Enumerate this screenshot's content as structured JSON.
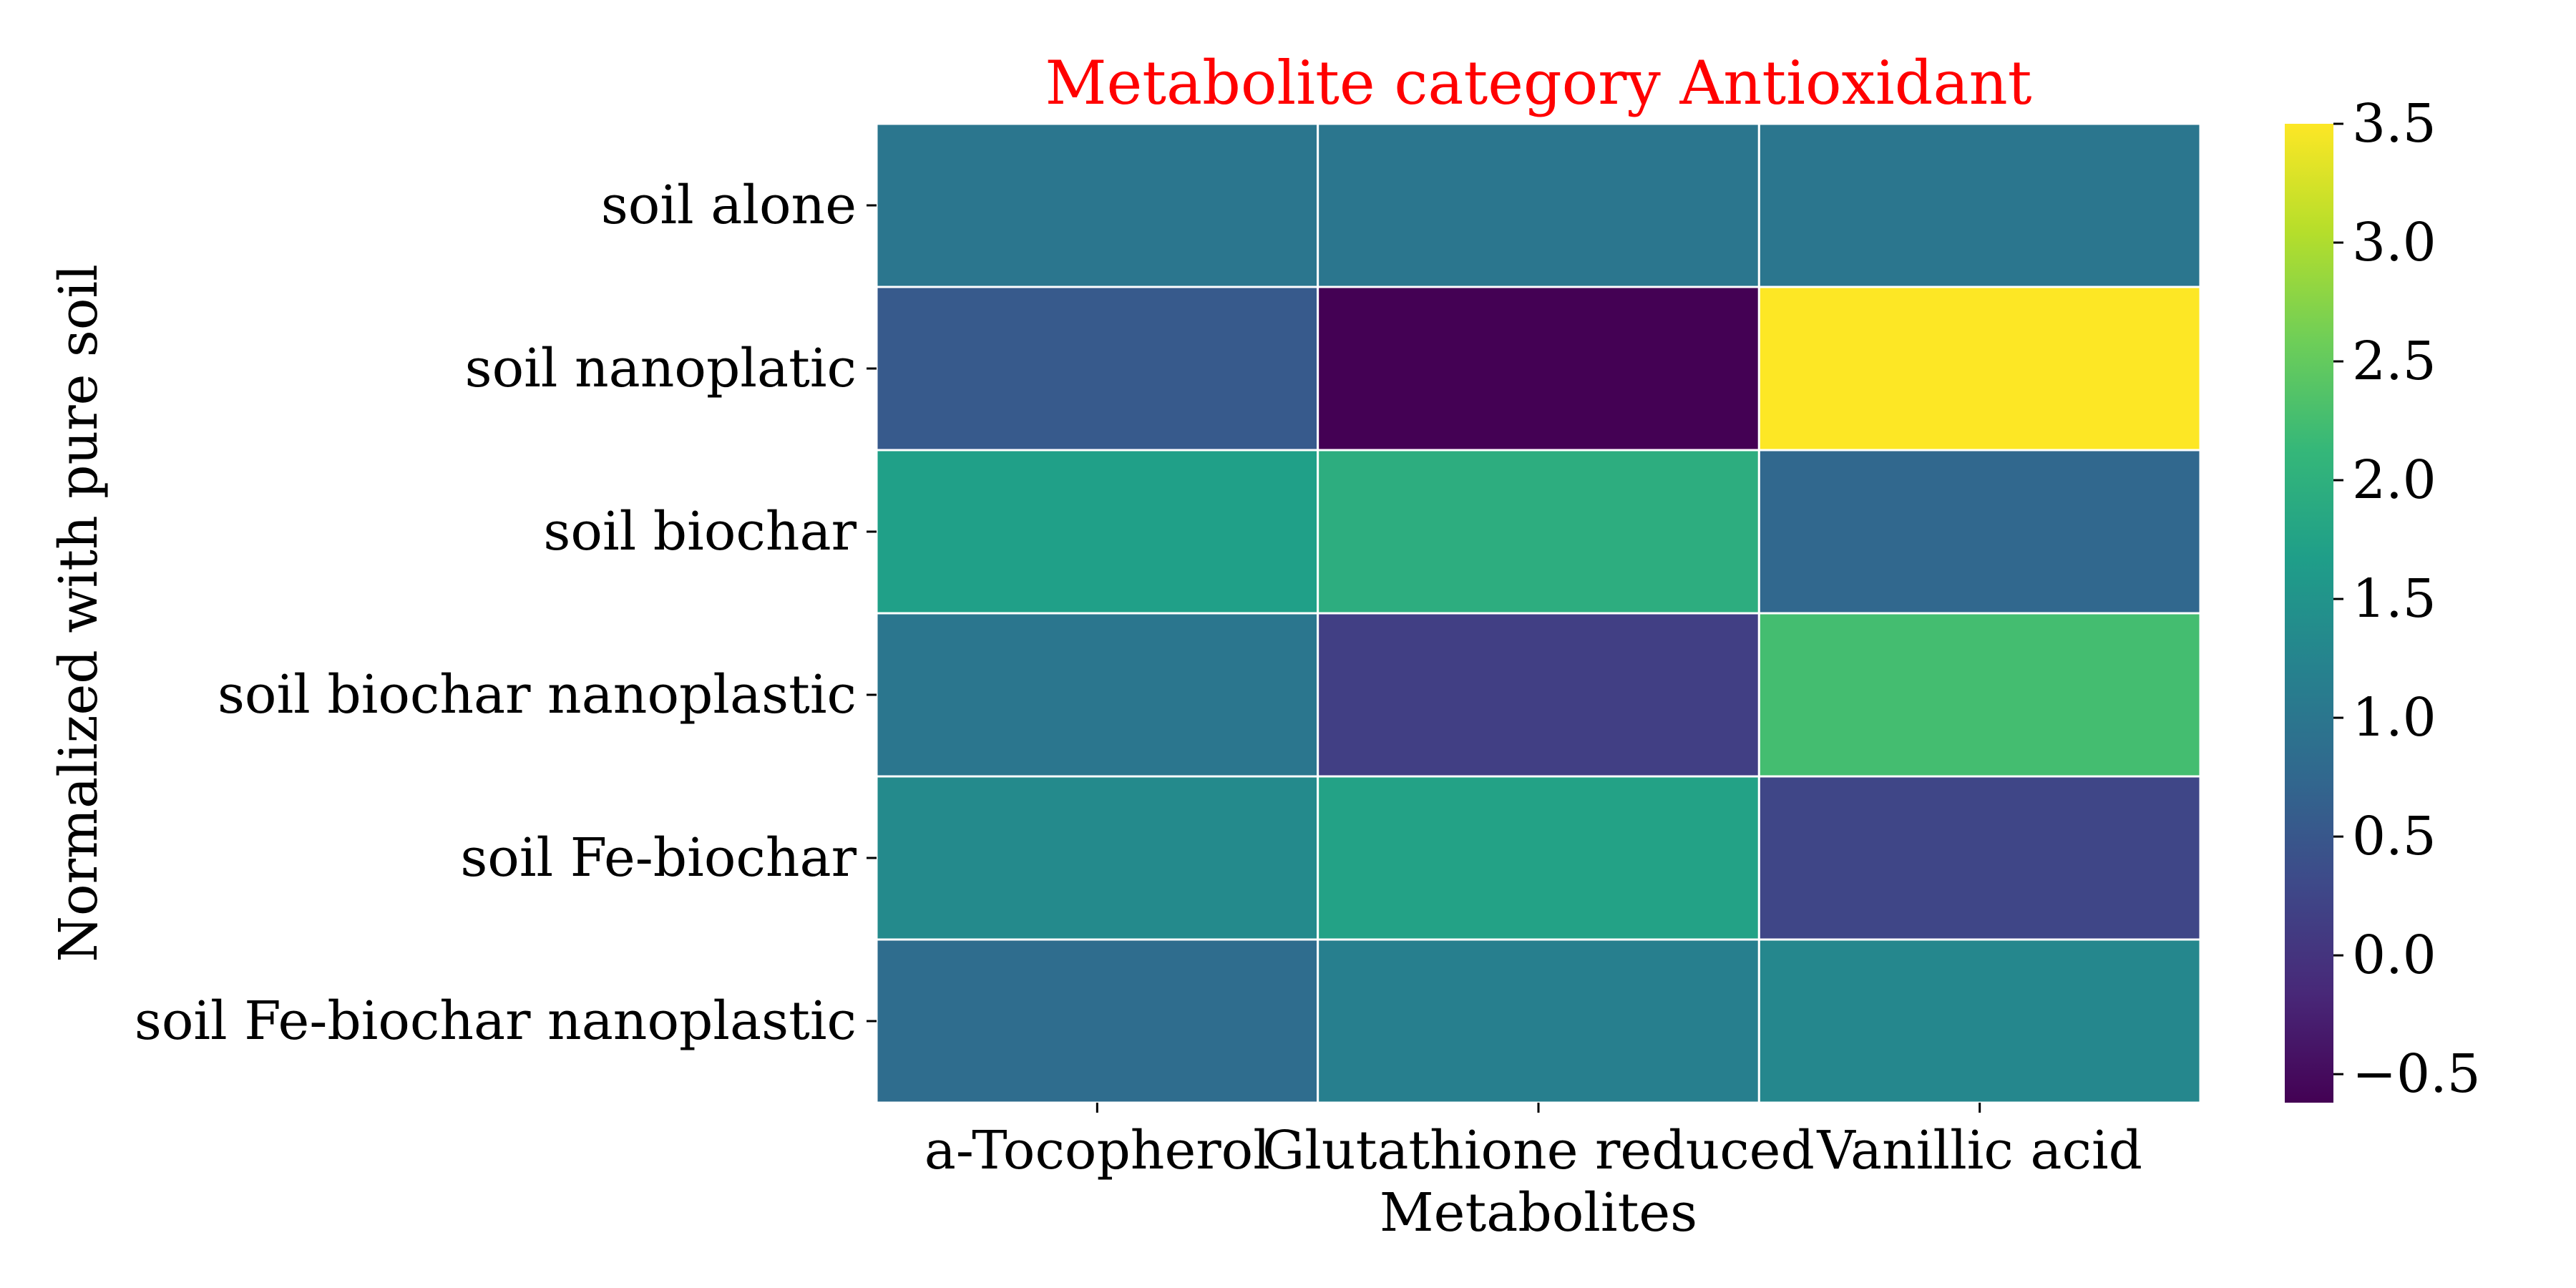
{
  "chart_data": {
    "type": "heatmap",
    "title": "Metabolite category Antioxidant",
    "title_color": "#ff0000",
    "xlabel": "Metabolites",
    "ylabel": "Normalized with pure soil",
    "x_categories": [
      "a-Tocopherol",
      "Glutathione reduced",
      "Vanillic acid"
    ],
    "y_categories": [
      "soil alone",
      "soil nanoplatic",
      "soil biochar",
      "soil biochar nanoplastic",
      "soil Fe-biochar",
      "soil Fe-biochar nanoplastic"
    ],
    "values": [
      [
        1.0,
        1.0,
        1.0
      ],
      [
        0.55,
        -0.62,
        3.5
      ],
      [
        1.7,
        1.95,
        0.75
      ],
      [
        1.0,
        0.15,
        2.25
      ],
      [
        1.35,
        1.75,
        0.25
      ],
      [
        0.85,
        1.15,
        1.3
      ]
    ],
    "colorbar": {
      "colormap": "viridis",
      "vmin": -0.62,
      "vmax": 3.5,
      "ticks": [
        -0.5,
        0.0,
        0.5,
        1.0,
        1.5,
        2.0,
        2.5,
        3.0,
        3.5
      ],
      "tick_labels": [
        "−0.5",
        "0.0",
        "0.5",
        "1.0",
        "1.5",
        "2.0",
        "2.5",
        "3.0",
        "3.5"
      ]
    },
    "cell_border_color": "#ffffff",
    "grid": false
  }
}
